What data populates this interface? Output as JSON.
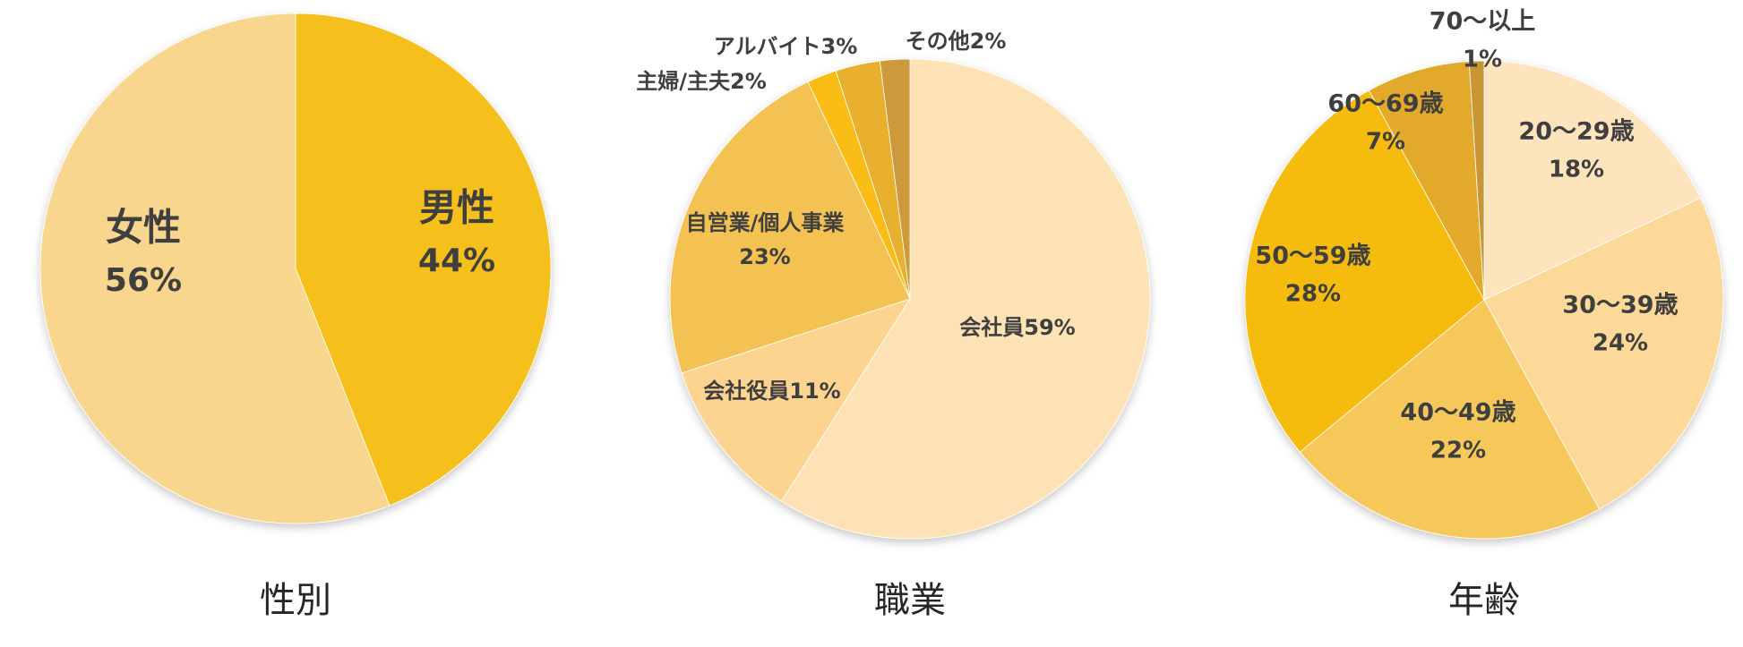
{
  "chart_data": [
    {
      "type": "pie",
      "title": "性別",
      "slices": [
        {
          "name": "男性",
          "value": 44,
          "label": "44%",
          "color": "#f5c01a"
        },
        {
          "name": "女性",
          "value": 56,
          "label": "56%",
          "color": "#f9d68e"
        }
      ]
    },
    {
      "type": "pie",
      "title": "職業",
      "slices": [
        {
          "name": "会社員59%",
          "value": 59,
          "label": "",
          "color": "#fde2b5"
        },
        {
          "name": "会社役員11%",
          "value": 11,
          "label": "",
          "color": "#fcd48f"
        },
        {
          "name": "自営業/個人事業",
          "value": 23,
          "label": "23%",
          "color": "#f4c252"
        },
        {
          "name": "主婦/主夫2%",
          "value": 2,
          "label": "",
          "color": "#f9bd14"
        },
        {
          "name": "アルバイト3%",
          "value": 3,
          "label": "",
          "color": "#e9b02f"
        },
        {
          "name": "その他2%",
          "value": 2,
          "label": "",
          "color": "#cc9a3a"
        }
      ]
    },
    {
      "type": "pie",
      "title": "年齢",
      "slices": [
        {
          "name": "20～29歳",
          "value": 18,
          "label": "18%",
          "color": "#fde4bd"
        },
        {
          "name": "30～39歳",
          "value": 24,
          "label": "24%",
          "color": "#fcd899"
        },
        {
          "name": "40～49歳",
          "value": 22,
          "label": "22%",
          "color": "#f6c85a"
        },
        {
          "name": "50～59歳",
          "value": 28,
          "label": "28%",
          "color": "#f5bb10"
        },
        {
          "name": "60～69歳",
          "value": 7,
          "label": "7%",
          "color": "#e2a92a"
        },
        {
          "name": "70～以上",
          "value": 1,
          "label": "1%",
          "color": "#c99636"
        }
      ]
    }
  ]
}
